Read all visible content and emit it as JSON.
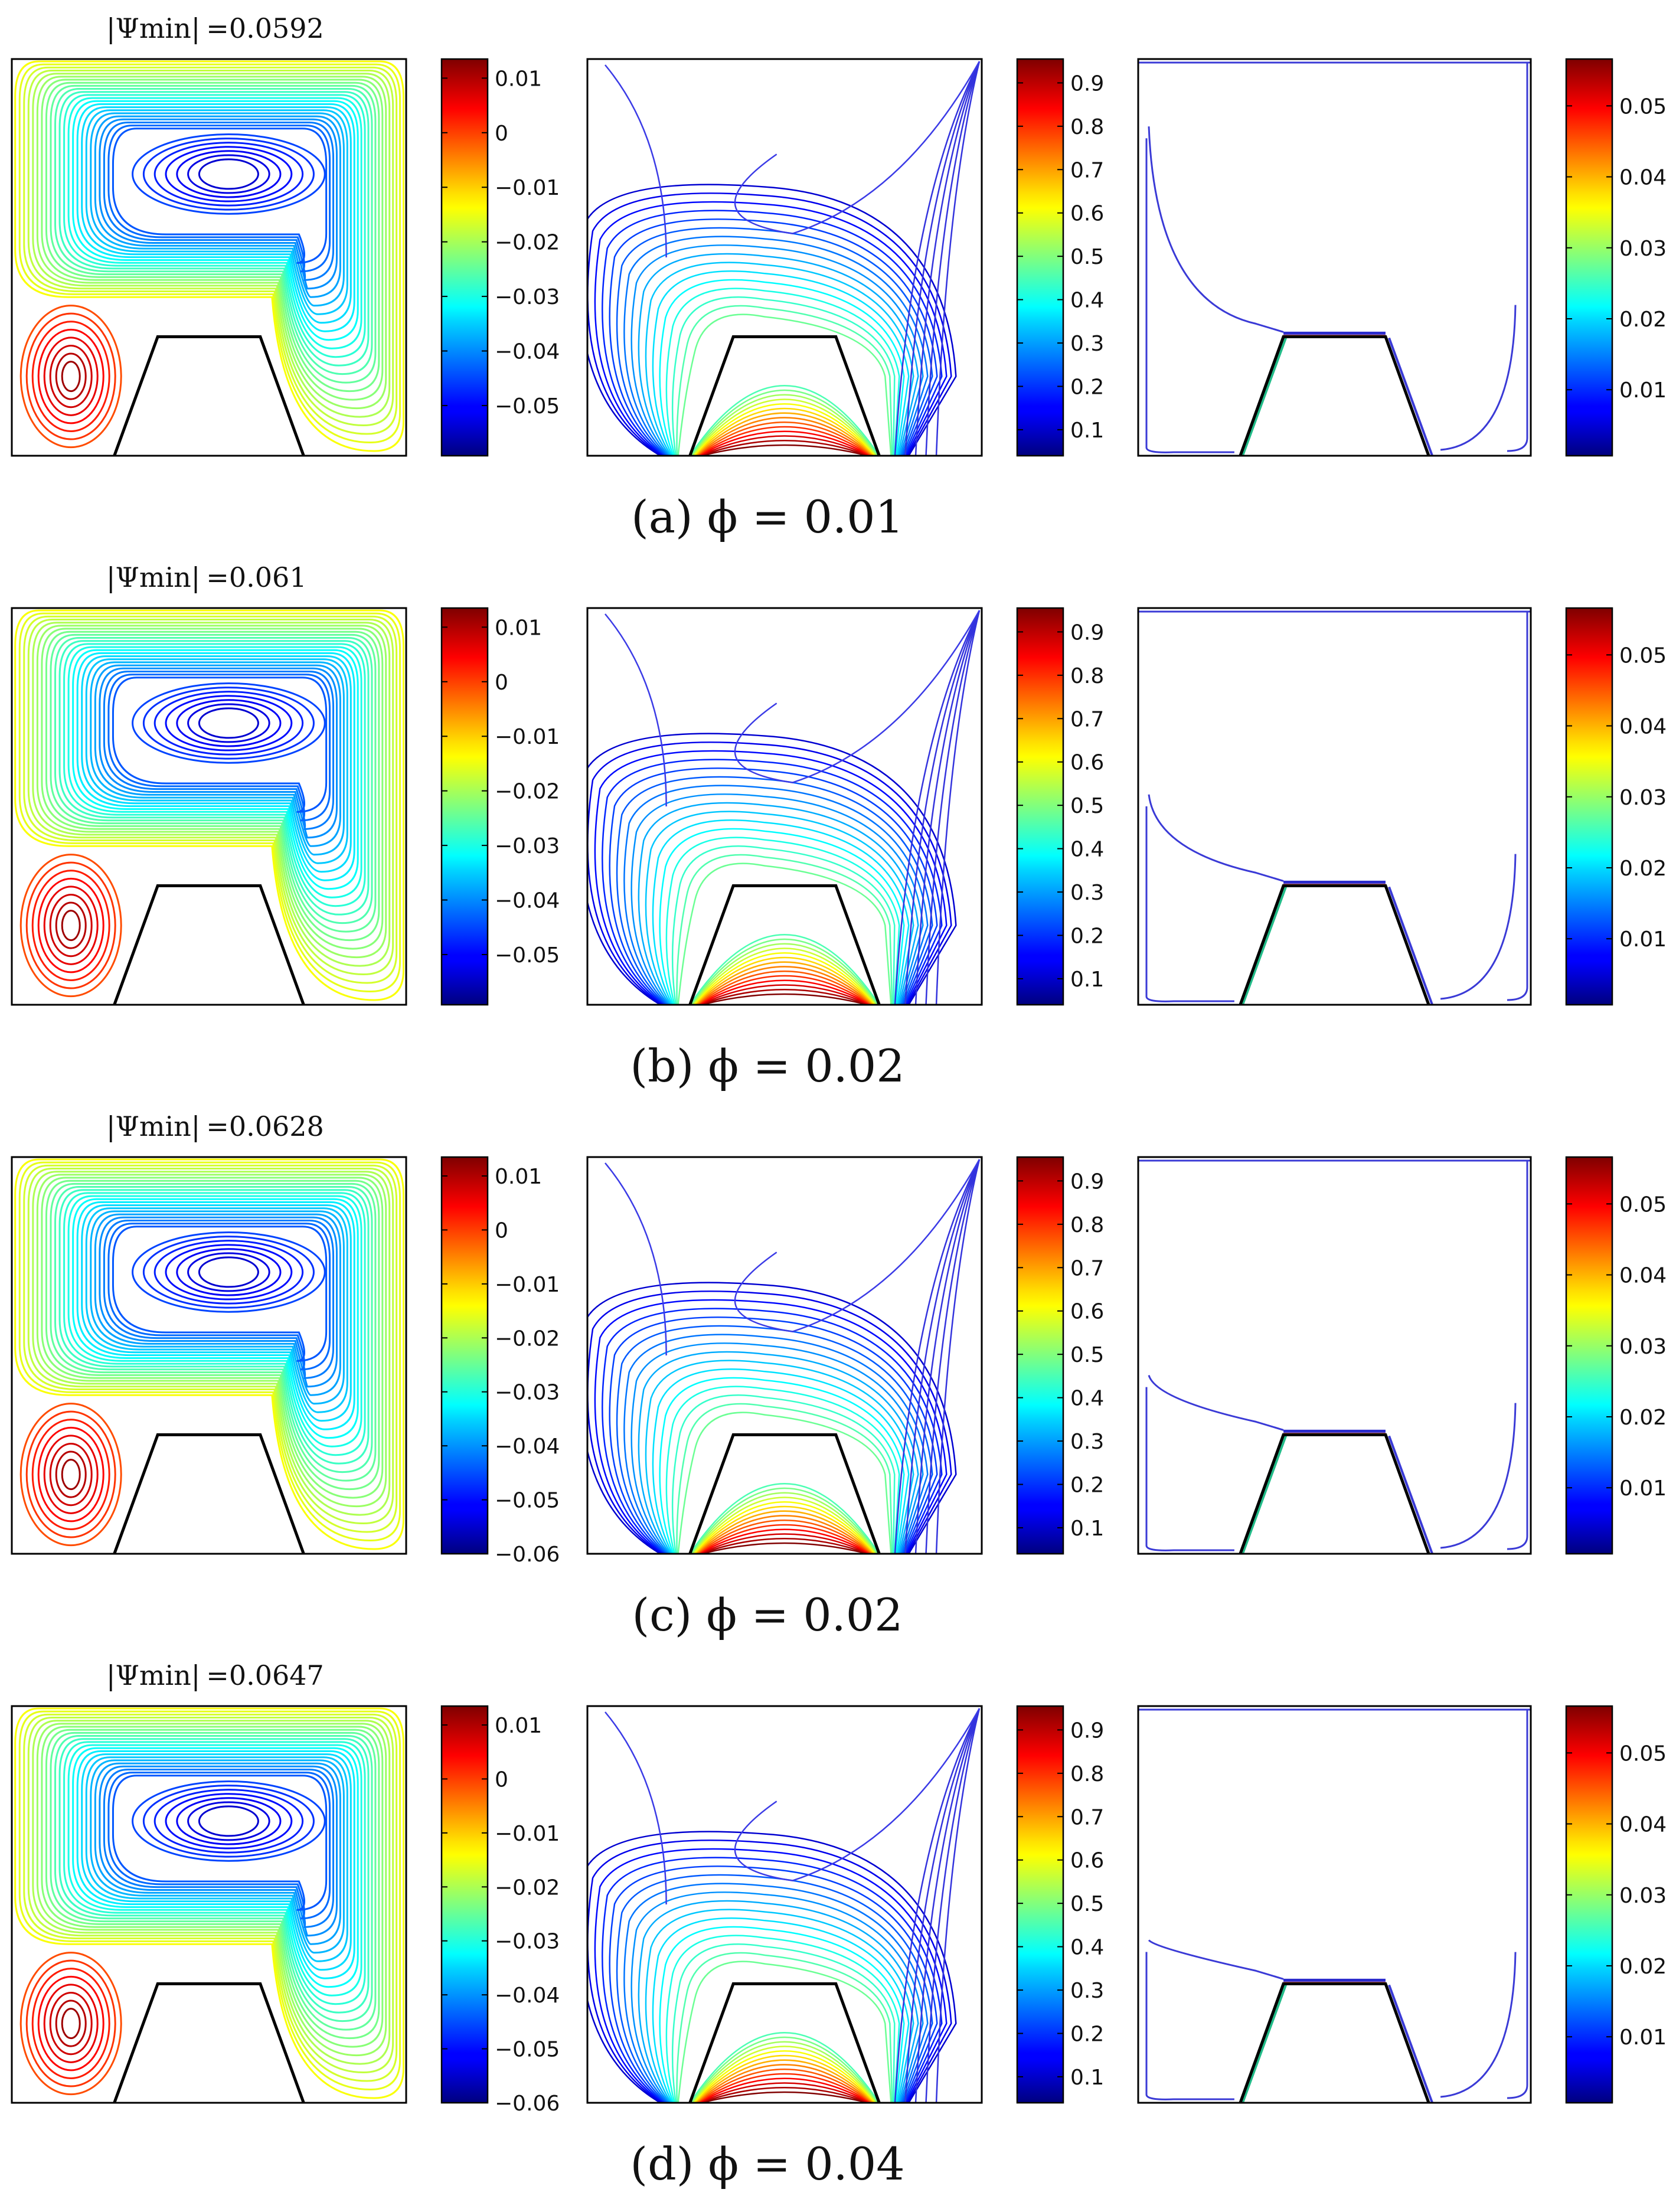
{
  "chart_data": {
    "type": "contour",
    "panel_columns": [
      "streamlines",
      "isotherms",
      "nanoparticle-concentration"
    ],
    "rows": [
      {
        "id": "a",
        "psi_label": "|Ψmin|",
        "psi_value": "=0.0592",
        "caption": "(a) ϕ = 0.01",
        "colorbars": [
          {
            "ticks": [
              "0.01",
              "0",
              "−0.01",
              "−0.02",
              "−0.03",
              "−0.04",
              "−0.05"
            ],
            "range": [
              -0.0592,
              0.0135
            ]
          },
          {
            "ticks": [
              "0.9",
              "0.8",
              "0.7",
              "0.6",
              "0.5",
              "0.4",
              "0.3",
              "0.2",
              "0.1"
            ],
            "range": [
              0.04,
              0.955
            ]
          },
          {
            "ticks": [
              "0.05",
              "0.04",
              "0.03",
              "0.02",
              "0.01"
            ],
            "range": [
              0.0007,
              0.0566
            ]
          }
        ],
        "conc_dip_y": 0.83
      },
      {
        "id": "b",
        "psi_label": "|Ψmin|",
        "psi_value": "=0.061",
        "caption": "(b) ϕ = 0.02",
        "colorbars": [
          {
            "ticks": [
              "0.01",
              "0",
              "−0.01",
              "−0.02",
              "−0.03",
              "−0.04",
              "−0.05"
            ],
            "range": [
              -0.0592,
              0.0135
            ]
          },
          {
            "ticks": [
              "0.9",
              "0.8",
              "0.7",
              "0.6",
              "0.5",
              "0.4",
              "0.3",
              "0.2",
              "0.1"
            ],
            "range": [
              0.04,
              0.955
            ]
          },
          {
            "ticks": [
              "0.05",
              "0.04",
              "0.03",
              "0.02",
              "0.01"
            ],
            "range": [
              0.0007,
              0.0566
            ]
          }
        ],
        "conc_dip_y": 0.53
      },
      {
        "id": "c",
        "psi_label": "|Ψmin|",
        "psi_value": "=0.0628",
        "caption": "(c) ϕ = 0.02",
        "colorbars": [
          {
            "ticks": [
              "0.01",
              "0",
              "−0.01",
              "−0.02",
              "−0.03",
              "−0.04",
              "−0.05",
              "−0.06"
            ],
            "range": [
              -0.06,
              0.0135
            ]
          },
          {
            "ticks": [
              "0.9",
              "0.8",
              "0.7",
              "0.6",
              "0.5",
              "0.4",
              "0.3",
              "0.2",
              "0.1"
            ],
            "range": [
              0.04,
              0.955
            ]
          },
          {
            "ticks": [
              "0.05",
              "0.04",
              "0.03",
              "0.02",
              "0.01"
            ],
            "range": [
              0.0007,
              0.0566
            ]
          }
        ],
        "conc_dip_y": 0.45
      },
      {
        "id": "d",
        "psi_label": "|Ψmin|",
        "psi_value": "=0.0647",
        "caption": "(d) ϕ = 0.04",
        "colorbars": [
          {
            "ticks": [
              "0.01",
              "0",
              "−0.01",
              "−0.02",
              "−0.03",
              "−0.04",
              "−0.05",
              "−0.06"
            ],
            "range": [
              -0.06,
              0.0135
            ]
          },
          {
            "ticks": [
              "0.9",
              "0.8",
              "0.7",
              "0.6",
              "0.5",
              "0.4",
              "0.3",
              "0.2",
              "0.1"
            ],
            "range": [
              0.04,
              0.955
            ]
          },
          {
            "ticks": [
              "0.05",
              "0.04",
              "0.03",
              "0.02",
              "0.01"
            ],
            "range": [
              0.0007,
              0.0566
            ]
          }
        ],
        "conc_dip_y": 0.41
      }
    ]
  }
}
